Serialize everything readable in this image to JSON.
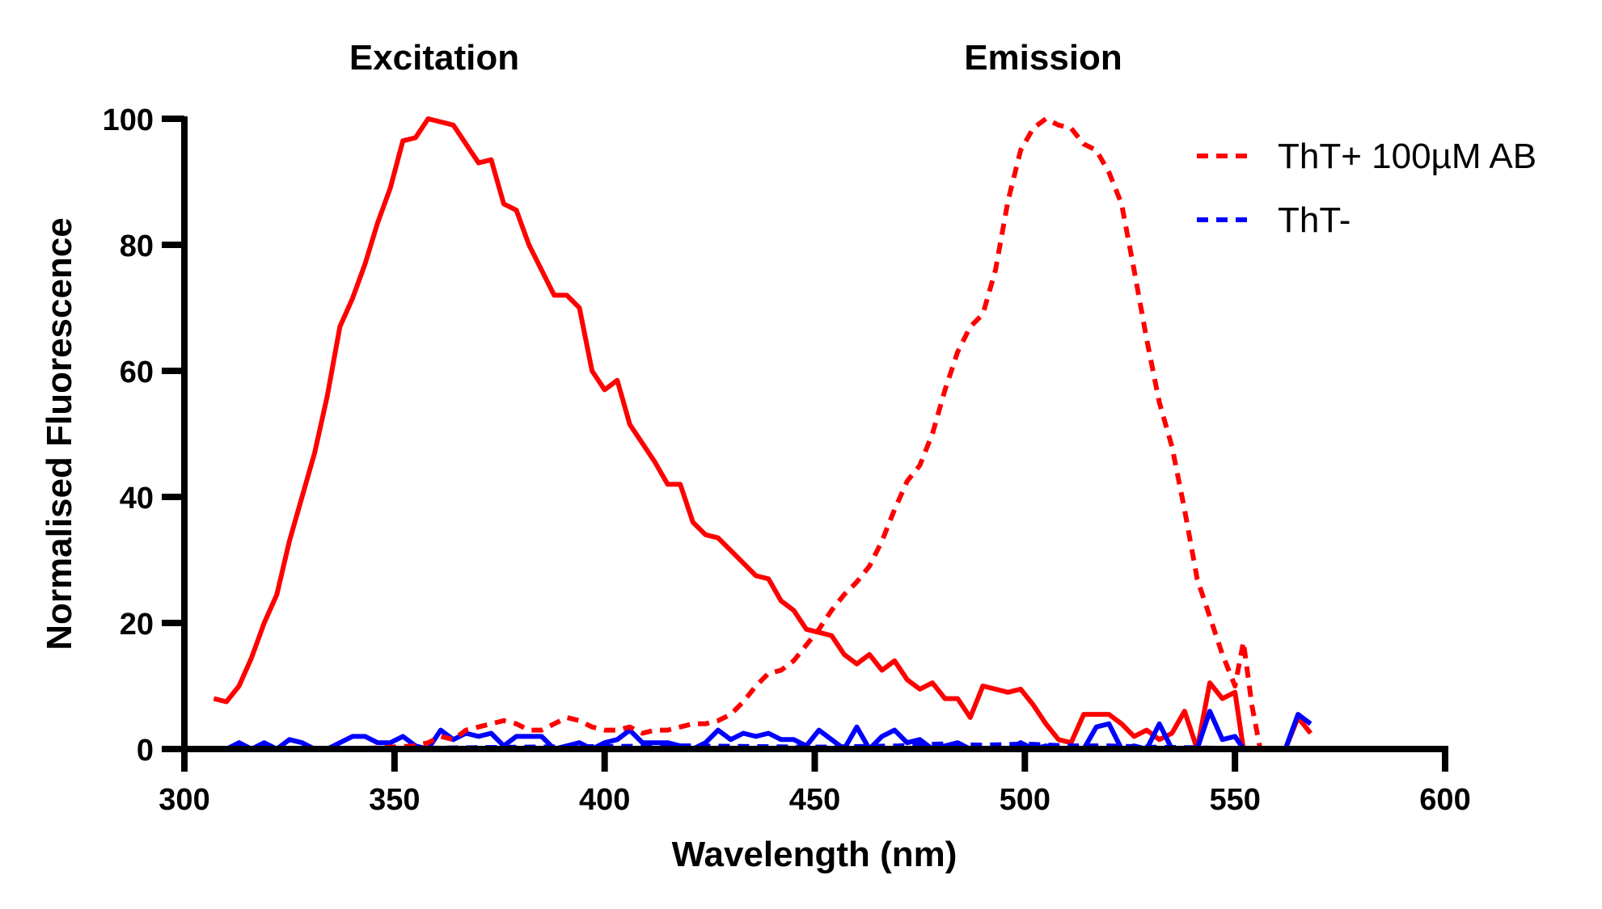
{
  "chart_data": {
    "type": "line",
    "xlabel": "Wavelength (nm)",
    "ylabel": "Normalised Fluorescence",
    "xlim": [
      300,
      600
    ],
    "ylim": [
      0,
      100
    ],
    "xticks": [
      "300",
      "350",
      "400",
      "450",
      "500",
      "550",
      "600"
    ],
    "yticks": [
      "0",
      "20",
      "40",
      "60",
      "80",
      "100"
    ],
    "panel_labels": [
      "Excitation",
      "Emission"
    ],
    "grid": false,
    "legend_position": "top-right",
    "colors": {
      "tht_plus": "#ff0000",
      "tht_minus": "#0000ff"
    },
    "legend": [
      {
        "label": "ThT+ 100µM AB",
        "color": "#ff0000",
        "dash": true
      },
      {
        "label": "ThT-",
        "color": "#0000ff",
        "dash": true
      }
    ],
    "series": [
      {
        "label": "ThT+ 100µM AB",
        "spectrum": "Excitation",
        "color": "#ff0000",
        "dash": false,
        "segments": [
          [
            [
              307,
              8
            ],
            [
              310,
              7.5
            ],
            [
              313,
              10
            ],
            [
              316,
              14.5
            ],
            [
              319,
              20
            ],
            [
              322,
              24.5
            ],
            [
              325,
              33
            ],
            [
              328,
              40
            ],
            [
              331,
              47
            ],
            [
              334,
              56
            ],
            [
              337,
              67
            ],
            [
              340,
              71.5
            ],
            [
              343,
              77
            ],
            [
              346,
              83.5
            ],
            [
              349,
              89
            ],
            [
              352,
              96.5
            ],
            [
              355,
              97
            ],
            [
              358,
              100
            ],
            [
              361,
              99.5
            ],
            [
              364,
              99
            ],
            [
              367,
              96
            ],
            [
              370,
              93
            ],
            [
              373,
              93.5
            ],
            [
              376,
              86.5
            ],
            [
              379,
              85.5
            ],
            [
              382,
              80
            ],
            [
              385,
              76
            ],
            [
              388,
              72
            ],
            [
              391,
              72
            ],
            [
              394,
              70
            ],
            [
              397,
              60
            ],
            [
              400,
              57
            ],
            [
              403,
              58.5
            ],
            [
              406,
              51.5
            ],
            [
              409,
              48.5
            ],
            [
              412,
              45.5
            ],
            [
              415,
              42
            ],
            [
              418,
              42
            ],
            [
              421,
              36
            ],
            [
              424,
              34
            ],
            [
              427,
              33.5
            ],
            [
              430,
              31.5
            ],
            [
              433,
              29.5
            ],
            [
              436,
              27.5
            ],
            [
              439,
              27
            ],
            [
              442,
              23.5
            ],
            [
              445,
              22
            ],
            [
              448,
              19
            ],
            [
              451,
              18.5
            ],
            [
              454,
              18
            ],
            [
              457,
              15
            ],
            [
              460,
              13.5
            ],
            [
              463,
              15
            ],
            [
              466,
              12.5
            ],
            [
              469,
              14
            ],
            [
              472,
              11
            ],
            [
              475,
              9.5
            ],
            [
              478,
              10.5
            ],
            [
              481,
              8
            ],
            [
              484,
              8
            ],
            [
              487,
              5
            ],
            [
              490,
              10
            ],
            [
              493,
              9.5
            ],
            [
              496,
              9
            ],
            [
              499,
              9.5
            ],
            [
              502,
              7
            ],
            [
              505,
              4
            ],
            [
              508,
              1.5
            ],
            [
              511,
              1
            ],
            [
              514,
              5.5
            ],
            [
              517,
              5.5
            ],
            [
              520,
              5.5
            ],
            [
              523,
              4
            ],
            [
              526,
              2
            ],
            [
              529,
              3
            ],
            [
              532,
              1.5
            ],
            [
              535,
              2.5
            ],
            [
              538,
              6
            ],
            [
              541,
              0
            ],
            [
              544,
              10.5
            ],
            [
              547,
              8
            ],
            [
              550,
              9
            ],
            [
              552,
              0
            ]
          ],
          [
            [
              562,
              0
            ],
            [
              565,
              5
            ],
            [
              568,
              2.5
            ]
          ],
          [
            [
              597,
              0
            ],
            [
              600,
              0
            ]
          ]
        ]
      },
      {
        "label": "ThT-",
        "spectrum": "Excitation",
        "color": "#0000ff",
        "dash": false,
        "segments": [
          [
            [
              307,
              0
            ],
            [
              310,
              0
            ],
            [
              313,
              1
            ],
            [
              316,
              0
            ],
            [
              319,
              1
            ],
            [
              322,
              0
            ],
            [
              325,
              1.5
            ],
            [
              328,
              1
            ],
            [
              331,
              0
            ],
            [
              334,
              0
            ],
            [
              337,
              1
            ],
            [
              340,
              2
            ],
            [
              343,
              2
            ],
            [
              346,
              1
            ],
            [
              349,
              1
            ],
            [
              352,
              2
            ],
            [
              355,
              0.5
            ],
            [
              358,
              0
            ],
            [
              361,
              3
            ],
            [
              364,
              1.5
            ],
            [
              367,
              2.5
            ],
            [
              370,
              2
            ],
            [
              373,
              2.5
            ],
            [
              376,
              0.5
            ],
            [
              379,
              2
            ],
            [
              382,
              2
            ],
            [
              385,
              2
            ],
            [
              388,
              0
            ],
            [
              391,
              0.5
            ],
            [
              394,
              1
            ],
            [
              397,
              0
            ],
            [
              400,
              1
            ],
            [
              403,
              1.5
            ],
            [
              406,
              3
            ],
            [
              409,
              1
            ],
            [
              412,
              1
            ],
            [
              415,
              1
            ],
            [
              418,
              0.5
            ],
            [
              421,
              0
            ],
            [
              424,
              1
            ],
            [
              427,
              3
            ],
            [
              430,
              1.5
            ],
            [
              433,
              2.5
            ],
            [
              436,
              2
            ],
            [
              439,
              2.5
            ],
            [
              442,
              1.5
            ],
            [
              445,
              1.5
            ],
            [
              448,
              0.5
            ],
            [
              451,
              3
            ],
            [
              454,
              1.5
            ],
            [
              457,
              0
            ],
            [
              460,
              3.5
            ],
            [
              463,
              0
            ],
            [
              466,
              2
            ],
            [
              469,
              3
            ],
            [
              472,
              1
            ],
            [
              475,
              1.5
            ],
            [
              478,
              0
            ],
            [
              481,
              0.5
            ],
            [
              484,
              1
            ],
            [
              487,
              0
            ],
            [
              490,
              0
            ],
            [
              493,
              0
            ],
            [
              496,
              0
            ],
            [
              499,
              1
            ],
            [
              502,
              0
            ],
            [
              505,
              0.5
            ],
            [
              508,
              0
            ],
            [
              511,
              0
            ],
            [
              514,
              0
            ],
            [
              517,
              3.5
            ],
            [
              520,
              4
            ],
            [
              523,
              0
            ],
            [
              526,
              0.5
            ],
            [
              529,
              0
            ],
            [
              532,
              4
            ],
            [
              535,
              0
            ],
            [
              538,
              0
            ],
            [
              541,
              0
            ],
            [
              544,
              6
            ],
            [
              547,
              1.5
            ],
            [
              550,
              2
            ],
            [
              552,
              0
            ]
          ],
          [
            [
              562,
              0
            ],
            [
              565,
              5.5
            ],
            [
              568,
              4
            ]
          ]
        ]
      },
      {
        "label": "ThT+ 100µM AB",
        "spectrum": "Emission",
        "color": "#ff0000",
        "dash": true,
        "segments": [
          [
            [
              320,
              0
            ],
            [
              340,
              0
            ],
            [
              355,
              0.5
            ],
            [
              358,
              1
            ],
            [
              361,
              2
            ],
            [
              364,
              1.5
            ],
            [
              367,
              3
            ],
            [
              370,
              3.5
            ],
            [
              373,
              4
            ],
            [
              376,
              4.5
            ],
            [
              379,
              4
            ],
            [
              382,
              3
            ],
            [
              385,
              3
            ],
            [
              388,
              4
            ],
            [
              391,
              5
            ],
            [
              394,
              4.5
            ],
            [
              397,
              3.5
            ],
            [
              400,
              3
            ],
            [
              403,
              3
            ],
            [
              406,
              3.5
            ],
            [
              409,
              2.5
            ],
            [
              412,
              3
            ],
            [
              415,
              3
            ],
            [
              418,
              3.5
            ],
            [
              421,
              4
            ],
            [
              424,
              4
            ],
            [
              427,
              4.5
            ],
            [
              430,
              5.5
            ],
            [
              433,
              7.5
            ],
            [
              436,
              10
            ],
            [
              439,
              12
            ],
            [
              442,
              12.5
            ],
            [
              445,
              14
            ],
            [
              448,
              16.5
            ],
            [
              451,
              19
            ],
            [
              454,
              22
            ],
            [
              457,
              24.5
            ],
            [
              460,
              26.5
            ],
            [
              463,
              29
            ],
            [
              466,
              33
            ],
            [
              469,
              38
            ],
            [
              472,
              42.5
            ],
            [
              475,
              45
            ],
            [
              478,
              50
            ],
            [
              481,
              57
            ],
            [
              484,
              63
            ],
            [
              487,
              67
            ],
            [
              490,
              69
            ],
            [
              493,
              76
            ],
            [
              496,
              87
            ],
            [
              499,
              95
            ],
            [
              502,
              98.5
            ],
            [
              505,
              100
            ],
            [
              508,
              99
            ],
            [
              511,
              98.5
            ],
            [
              514,
              96
            ],
            [
              517,
              95
            ],
            [
              520,
              91.5
            ],
            [
              523,
              86.5
            ],
            [
              526,
              76
            ],
            [
              529,
              65
            ],
            [
              532,
              55
            ],
            [
              535,
              48
            ],
            [
              538,
              38
            ],
            [
              541,
              27
            ],
            [
              544,
              21
            ],
            [
              547,
              15
            ],
            [
              550,
              10
            ],
            [
              552,
              17
            ],
            [
              554,
              7
            ],
            [
              556,
              0
            ]
          ]
        ]
      },
      {
        "label": "ThT-",
        "spectrum": "Emission",
        "color": "#0000ff",
        "dash": true,
        "segments": [
          [
            [
              307,
              0
            ],
            [
              340,
              0
            ],
            [
              380,
              0.3
            ],
            [
              420,
              0.5
            ],
            [
              450,
              0.3
            ],
            [
              470,
              0.5
            ],
            [
              480,
              0.8
            ],
            [
              490,
              0.6
            ],
            [
              500,
              0.8
            ],
            [
              510,
              0.5
            ],
            [
              520,
              0.5
            ],
            [
              530,
              0.3
            ],
            [
              540,
              0.2
            ],
            [
              553,
              0
            ]
          ]
        ]
      }
    ]
  }
}
